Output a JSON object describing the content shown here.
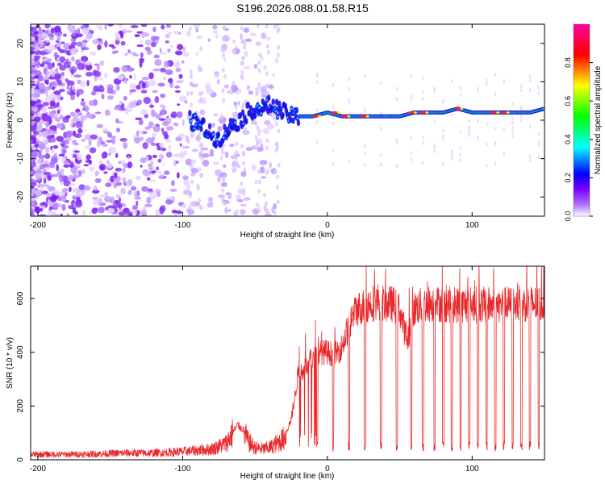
{
  "title": "S196.2026.088.01.58.R15",
  "colors": {
    "snr_line": "#e8282a",
    "spectrum_main": "#7a2cf0",
    "frame": "#000000"
  },
  "chart_data": [
    {
      "type": "heatmap",
      "name": "spectrogram",
      "xlabel": "Height of straight line (km)",
      "ylabel": "Frequency (Hz)",
      "xlim": [
        -205,
        150
      ],
      "ylim": [
        -25,
        25
      ],
      "xticks": [
        -200,
        -100,
        0,
        100
      ],
      "yticks": [
        -20,
        -10,
        0,
        10,
        20
      ],
      "colorbar": {
        "label": "Normalized spectral amplitude",
        "range": [
          0,
          1
        ],
        "ticks": [
          "0.0",
          "0.2",
          "0.4",
          "0.6",
          "0.8"
        ],
        "tick_values": [
          0,
          0.2,
          0.4,
          0.6,
          0.8
        ],
        "colormap": [
          "#ffffff",
          "#7a00ff",
          "#0000ff",
          "#00ffff",
          "#00ff00",
          "#ffff00",
          "#ff0000",
          "#ff00ff"
        ]
      },
      "signal_trace": {
        "description_points_x": [
          -95,
          -90,
          -85,
          -80,
          -75,
          -70,
          -65,
          -60,
          -55,
          -50,
          -45,
          -40,
          -35,
          -30,
          -25,
          -20,
          -10,
          0,
          10,
          20,
          30,
          40,
          50,
          60,
          70,
          80,
          90,
          100,
          110,
          120,
          130,
          140,
          150
        ],
        "description_points_y": [
          0,
          -1,
          -2,
          -4,
          -5,
          -3,
          -1,
          0,
          2,
          3,
          3,
          4,
          3,
          2,
          1,
          1,
          1,
          2,
          1,
          1,
          1,
          1,
          1,
          2,
          2,
          2,
          3,
          2,
          2,
          2,
          2,
          2,
          3
        ]
      }
    },
    {
      "type": "line",
      "name": "snr",
      "xlabel": "Height of straight line (km)",
      "ylabel": "SNR (10 * v/v)",
      "xlim": [
        -205,
        150
      ],
      "ylim": [
        0,
        720
      ],
      "xticks": [
        -200,
        -100,
        0,
        100
      ],
      "yticks": [
        0,
        200,
        400,
        600
      ],
      "series": [
        {
          "name": "SNR",
          "x": [
            -205,
            -180,
            -160,
            -140,
            -120,
            -100,
            -90,
            -80,
            -70,
            -62,
            -58,
            -55,
            -50,
            -45,
            -40,
            -35,
            -30,
            -25,
            -22,
            -20,
            -15,
            -10,
            -5,
            0,
            5,
            10,
            15,
            20,
            25,
            30,
            35,
            40,
            45,
            50,
            55,
            60,
            65,
            70,
            80,
            90,
            100,
            110,
            120,
            130,
            140,
            150
          ],
          "values": [
            20,
            20,
            22,
            25,
            25,
            30,
            35,
            40,
            60,
            130,
            110,
            70,
            45,
            40,
            45,
            60,
            80,
            150,
            250,
            330,
            340,
            380,
            400,
            400,
            390,
            420,
            500,
            560,
            570,
            580,
            590,
            580,
            580,
            560,
            440,
            560,
            575,
            580,
            580,
            575,
            580,
            575,
            575,
            580,
            580,
            580
          ],
          "dropouts_x": [
            -7,
            4,
            15,
            26,
            37,
            48,
            58,
            66,
            74,
            80,
            86,
            92,
            98,
            104,
            110,
            116,
            122,
            128,
            134,
            140,
            146
          ]
        }
      ]
    }
  ]
}
